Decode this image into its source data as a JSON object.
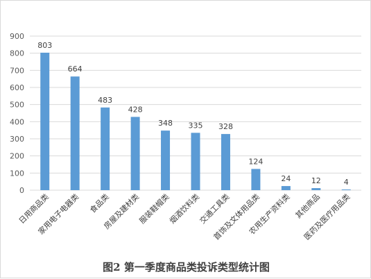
{
  "colors": {
    "bar": "#5b9bd5",
    "grid": "#d9d9d9",
    "axis_text": "#595959"
  },
  "chart_data": {
    "type": "bar",
    "title": "图2  第一季度商品类投诉类型统计图",
    "xlabel": "",
    "ylabel": "",
    "ylim": [
      0,
      900
    ],
    "yticks": [
      0,
      100,
      200,
      300,
      400,
      500,
      600,
      700,
      800,
      900
    ],
    "grid": true,
    "legend": "none",
    "categories": [
      "日用商品类",
      "家用电子电器类",
      "食品类",
      "房屋及建材类",
      "服装鞋帽类",
      "烟酒饮料类",
      "交通工具类",
      "首饰及文体用品类",
      "农用生产资料类",
      "其他商品",
      "医药及医疗用品类"
    ],
    "values": [
      803,
      664,
      483,
      428,
      348,
      335,
      328,
      124,
      24,
      12,
      4
    ],
    "data_labels": [
      "803",
      "664",
      "483",
      "428",
      "348",
      "335",
      "328",
      "124",
      "24",
      "12",
      "4"
    ]
  }
}
